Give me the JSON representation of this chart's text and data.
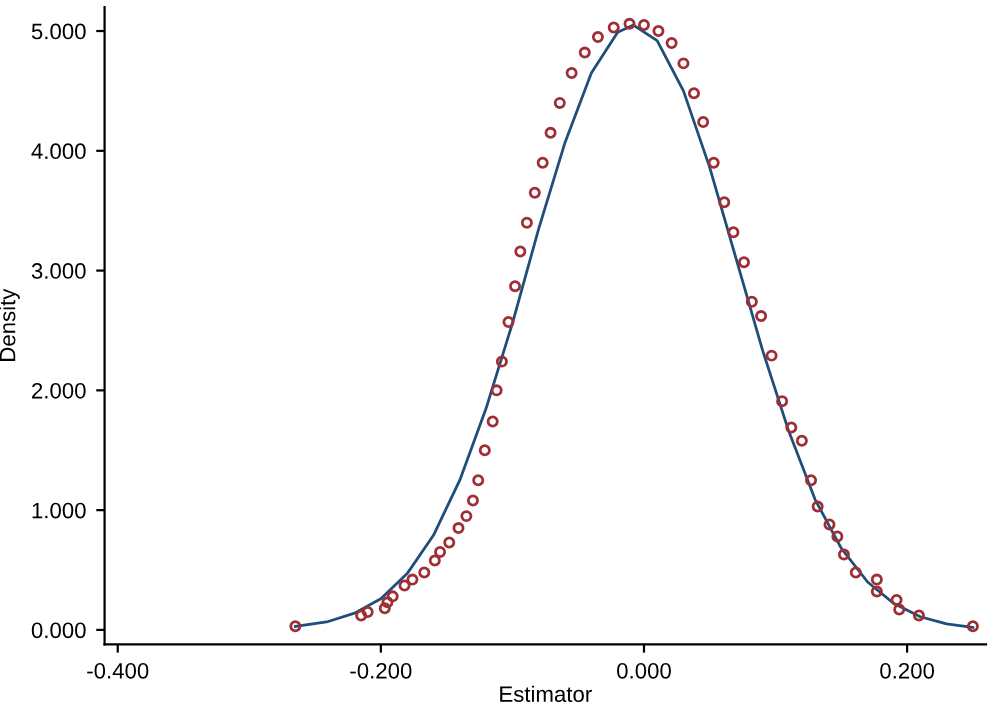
{
  "chart_data": {
    "type": "scatter",
    "xlabel": "Estimator",
    "ylabel": "Density",
    "xlim": [
      -0.41,
      0.26
    ],
    "ylim": [
      -0.12,
      5.2
    ],
    "xticks": [
      {
        "value": -0.4,
        "label": "-0.400"
      },
      {
        "value": -0.2,
        "label": "-0.200"
      },
      {
        "value": 0,
        "label": "0.000"
      },
      {
        "value": 0.2,
        "label": "0.200"
      }
    ],
    "yticks": [
      {
        "value": 0,
        "label": "0.000"
      },
      {
        "value": 1,
        "label": "1.000"
      },
      {
        "value": 2,
        "label": "2.000"
      },
      {
        "value": 3,
        "label": "3.000"
      },
      {
        "value": 4,
        "label": "4.000"
      },
      {
        "value": 5,
        "label": "5.000"
      }
    ],
    "grid": false,
    "series": [
      {
        "type": "line",
        "color": "#1f4e79",
        "marker": "none",
        "line_style": "solid",
        "x": [
          -0.265,
          -0.24,
          -0.22,
          -0.2,
          -0.18,
          -0.16,
          -0.14,
          -0.12,
          -0.1,
          -0.08,
          -0.06,
          -0.04,
          -0.02,
          -0.008,
          0.01,
          0.03,
          0.05,
          0.07,
          0.09,
          0.11,
          0.13,
          0.15,
          0.17,
          0.19,
          0.21,
          0.23,
          0.25
        ],
        "values": [
          0.03,
          0.07,
          0.14,
          0.26,
          0.47,
          0.79,
          1.25,
          1.85,
          2.56,
          3.35,
          4.07,
          4.65,
          4.99,
          5.05,
          4.92,
          4.5,
          3.86,
          3.1,
          2.34,
          1.66,
          1.09,
          0.68,
          0.4,
          0.22,
          0.11,
          0.05,
          0.02
        ]
      },
      {
        "color": "#9e2f35",
        "marker": "circle",
        "x": [
          -0.265,
          -0.215,
          -0.21,
          -0.197,
          -0.195,
          -0.191,
          -0.182,
          -0.176,
          -0.167,
          -0.159,
          -0.155,
          -0.148,
          -0.141,
          -0.135,
          -0.13,
          -0.126,
          -0.121,
          -0.115,
          -0.112,
          -0.108,
          -0.103,
          -0.098,
          -0.094,
          -0.089,
          -0.083,
          -0.077,
          -0.071,
          -0.064,
          -0.055,
          -0.045,
          -0.035,
          -0.023,
          -0.011,
          0.0,
          0.011,
          0.021,
          0.03,
          0.038,
          0.045,
          0.053,
          0.061,
          0.068,
          0.076,
          0.082,
          0.089,
          0.097,
          0.105,
          0.112,
          0.12,
          0.127,
          0.132,
          0.141,
          0.147,
          0.152,
          0.161,
          0.177,
          0.177,
          0.192,
          0.194,
          0.209,
          0.25
        ],
        "values": [
          0.03,
          0.12,
          0.15,
          0.18,
          0.23,
          0.28,
          0.37,
          0.42,
          0.48,
          0.58,
          0.65,
          0.73,
          0.85,
          0.95,
          1.08,
          1.25,
          1.5,
          1.74,
          2.0,
          2.24,
          2.57,
          2.87,
          3.16,
          3.4,
          3.65,
          3.9,
          4.15,
          4.4,
          4.65,
          4.82,
          4.95,
          5.03,
          5.06,
          5.05,
          5.0,
          4.9,
          4.73,
          4.48,
          4.24,
          3.9,
          3.57,
          3.32,
          3.07,
          2.74,
          2.62,
          2.29,
          1.91,
          1.69,
          1.58,
          1.25,
          1.03,
          0.88,
          0.78,
          0.63,
          0.48,
          0.42,
          0.32,
          0.25,
          0.17,
          0.12,
          0.03
        ]
      }
    ]
  }
}
